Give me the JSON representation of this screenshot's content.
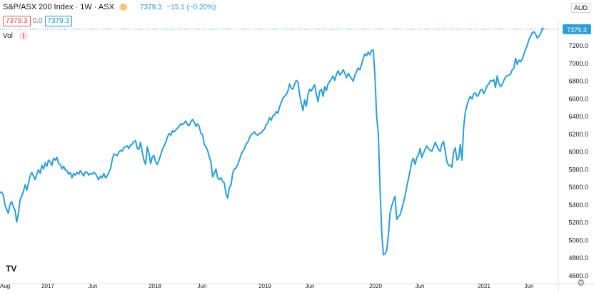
{
  "header": {
    "symbol_title": "S&P/ASX 200 Index · 1W · ASX",
    "delay_badge": "D",
    "last_value": "7379.3",
    "change": "−15.1 (−0.20%)",
    "price_box_left": "7379.3",
    "spread": "0.0",
    "price_box_right": "7379.3",
    "vol_label": "Vol",
    "vol_warning": "!",
    "currency": "AUD",
    "logo": "TV",
    "settings_icon": "gear-icon"
  },
  "colors": {
    "line": "#2b9fd6",
    "price_label_bg": "#2b9fd6",
    "text": "#131722",
    "axis_text": "#131722"
  },
  "chart_data": {
    "type": "line",
    "title": "S&P/ASX 200 Index · 1W · ASX",
    "xlabel": "",
    "ylabel": "",
    "ylim": [
      4550,
      7450
    ],
    "y_ticks": [
      "7200.0",
      "7000.0",
      "6800.0",
      "6600.0",
      "6400.0",
      "6200.0",
      "6000.0",
      "5800.0",
      "5600.0",
      "5400.0",
      "5200.0",
      "5000.0",
      "4800.0",
      "4600.0"
    ],
    "x_ticks": [
      "Aug",
      "2017",
      "Jun",
      "2018",
      "Jun",
      "2019",
      "Jun",
      "2020",
      "Jun",
      "2021",
      "Jun"
    ],
    "last_price_label": "7379.3",
    "grid": false,
    "series": [
      {
        "values": [
          5530,
          5540,
          5500,
          5390,
          5340,
          5300,
          5400,
          5430,
          5370,
          5330,
          5200,
          5300,
          5450,
          5490,
          5550,
          5620,
          5560,
          5640,
          5720,
          5760,
          5720,
          5680,
          5740,
          5790,
          5750,
          5840,
          5800,
          5870,
          5830,
          5900,
          5880,
          5840,
          5920,
          5900,
          5930,
          5860,
          5850,
          5800,
          5830,
          5790,
          5780,
          5740,
          5760,
          5700,
          5750,
          5730,
          5760,
          5740,
          5780,
          5750,
          5720,
          5770,
          5760,
          5730,
          5750,
          5740,
          5760,
          5750,
          5710,
          5680,
          5720,
          5700,
          5750,
          5700,
          5720,
          5760,
          5800,
          5900,
          5970,
          5960,
          5950,
          5990,
          6010,
          6000,
          6040,
          6050,
          6060,
          6030,
          6070,
          6080,
          6110,
          6120,
          6030,
          6020,
          6100,
          5990,
          5900,
          5850,
          6050,
          5970,
          5860,
          5940,
          5950,
          5880,
          5850,
          5900,
          5960,
          6020,
          6060,
          6100,
          6160,
          6200,
          6180,
          6230,
          6220,
          6240,
          6260,
          6280,
          6310,
          6300,
          6320,
          6340,
          6300,
          6290,
          6330,
          6360,
          6330,
          6280,
          6310,
          6280,
          6200,
          6190,
          6080,
          6050,
          6010,
          5940,
          5880,
          5710,
          5750,
          5800,
          5700,
          5680,
          5700,
          5660,
          5640,
          5520,
          5470,
          5590,
          5620,
          5750,
          5800,
          5810,
          5850,
          5900,
          5960,
          6000,
          6030,
          6080,
          6100,
          6150,
          6190,
          6200,
          6220,
          6190,
          6180,
          6200,
          6210,
          6230,
          6250,
          6300,
          6320,
          6380,
          6350,
          6400,
          6410,
          6450,
          6430,
          6500,
          6550,
          6600,
          6620,
          6640,
          6680,
          6760,
          6710,
          6700,
          6760,
          6800,
          6780,
          6640,
          6540,
          6460,
          6580,
          6510,
          6640,
          6700,
          6680,
          6720,
          6750,
          6640,
          6560,
          6680,
          6700,
          6620,
          6730,
          6690,
          6760,
          6790,
          6820,
          6850,
          6800,
          6870,
          6910,
          6860,
          6880,
          6920,
          6880,
          6830,
          6880,
          6850,
          6820,
          6790,
          6860,
          6900,
          6940,
          6920,
          6980,
          7050,
          7100,
          7080,
          7120,
          7090,
          7140,
          7140,
          6850,
          6400,
          6200,
          5600,
          5100,
          4830,
          4840,
          4880,
          5050,
          5300,
          5380,
          5440,
          5490,
          5230,
          5260,
          5280,
          5350,
          5420,
          5500,
          5600,
          5690,
          5780,
          5880,
          5920,
          5850,
          5930,
          5960,
          6030,
          5930,
          5980,
          6020,
          6060,
          6030,
          6010,
          6000,
          6050,
          6100,
          6060,
          6020,
          6000,
          6080,
          6110,
          6000,
          5880,
          5840,
          5840,
          5820,
          5990,
          6040,
          5900,
          5920,
          6080,
          5900,
          6280,
          6440,
          6520,
          6580,
          6620,
          6590,
          6650,
          6660,
          6620,
          6640,
          6690,
          6700,
          6650,
          6690,
          6740,
          6760,
          6800,
          6790,
          6810,
          6720,
          6850,
          6770,
          6730,
          6750,
          6800,
          6840,
          6850,
          6860,
          6870,
          6920,
          6940,
          7050,
          6980,
          7030,
          7010,
          7040,
          7100,
          7150,
          7200,
          7260,
          7300,
          7340,
          7350,
          7320,
          7280,
          7300,
          7330,
          7390,
          7379
        ]
      }
    ]
  }
}
